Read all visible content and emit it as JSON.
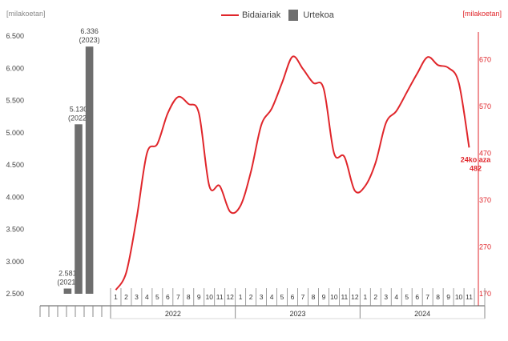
{
  "legend": {
    "line_label": "Bidaiariak",
    "bar_label": "Urtekoa"
  },
  "units": {
    "left": "[milakoetan]",
    "right": "[milakoetan]"
  },
  "colors": {
    "line": "#e0262b",
    "bar": "#6e6e6e",
    "axis_right": "#e0262b",
    "axis_left": "#444444"
  },
  "chart_data": [
    {
      "type": "bar",
      "categories": [
        "",
        "2021",
        "2022",
        "2023",
        ""
      ],
      "values": [
        null,
        2581,
        5130,
        6336,
        null
      ],
      "data_labels": [
        {
          "value": "2.581",
          "year": "(2021)"
        },
        {
          "value": "5.130",
          "year": "(2022)"
        },
        {
          "value": "6.336",
          "year": "(2023)"
        }
      ],
      "ylim": [
        2500,
        6500
      ],
      "yticks": [
        "2.500",
        "3.000",
        "3.500",
        "4.000",
        "4.500",
        "5.000",
        "5.500",
        "6.000",
        "6.500"
      ],
      "ytick_values": [
        2500,
        3000,
        3500,
        4000,
        4500,
        5000,
        5500,
        6000,
        6500
      ]
    },
    {
      "type": "line",
      "x": [
        "2022-01",
        "2022-02",
        "2022-03",
        "2022-04",
        "2022-05",
        "2022-06",
        "2022-07",
        "2022-08",
        "2022-09",
        "2022-10",
        "2022-11",
        "2022-12",
        "2023-01",
        "2023-02",
        "2023-03",
        "2023-04",
        "2023-05",
        "2023-06",
        "2023-07",
        "2023-08",
        "2023-09",
        "2023-10",
        "2023-11",
        "2023-12",
        "2024-01",
        "2024-02",
        "2024-03",
        "2024-04",
        "2024-05",
        "2024-06",
        "2024-07",
        "2024-08",
        "2024-09",
        "2024-10",
        "2024-11"
      ],
      "values": [
        178,
        215,
        330,
        470,
        490,
        555,
        590,
        575,
        555,
        400,
        400,
        345,
        358,
        430,
        530,
        565,
        620,
        676,
        650,
        620,
        608,
        470,
        462,
        390,
        400,
        450,
        535,
        560,
        600,
        640,
        675,
        658,
        652,
        620,
        482
      ],
      "month_labels": [
        "1",
        "2",
        "3",
        "4",
        "5",
        "6",
        "7",
        "8",
        "9",
        "10",
        "11",
        "12",
        "1",
        "2",
        "3",
        "4",
        "5",
        "6",
        "7",
        "8",
        "9",
        "10",
        "11",
        "12",
        "1",
        "2",
        "3",
        "4",
        "5",
        "6",
        "7",
        "8",
        "9",
        "10",
        "11"
      ],
      "years": [
        "2022",
        "2023",
        "2024"
      ],
      "ylim": [
        170,
        720
      ],
      "yticks": [
        "170",
        "270",
        "370",
        "470",
        "570",
        "670"
      ],
      "ytick_values": [
        170,
        270,
        370,
        470,
        570,
        670
      ],
      "annotation": {
        "line1": "24ko aza",
        "line2": "482"
      }
    }
  ]
}
